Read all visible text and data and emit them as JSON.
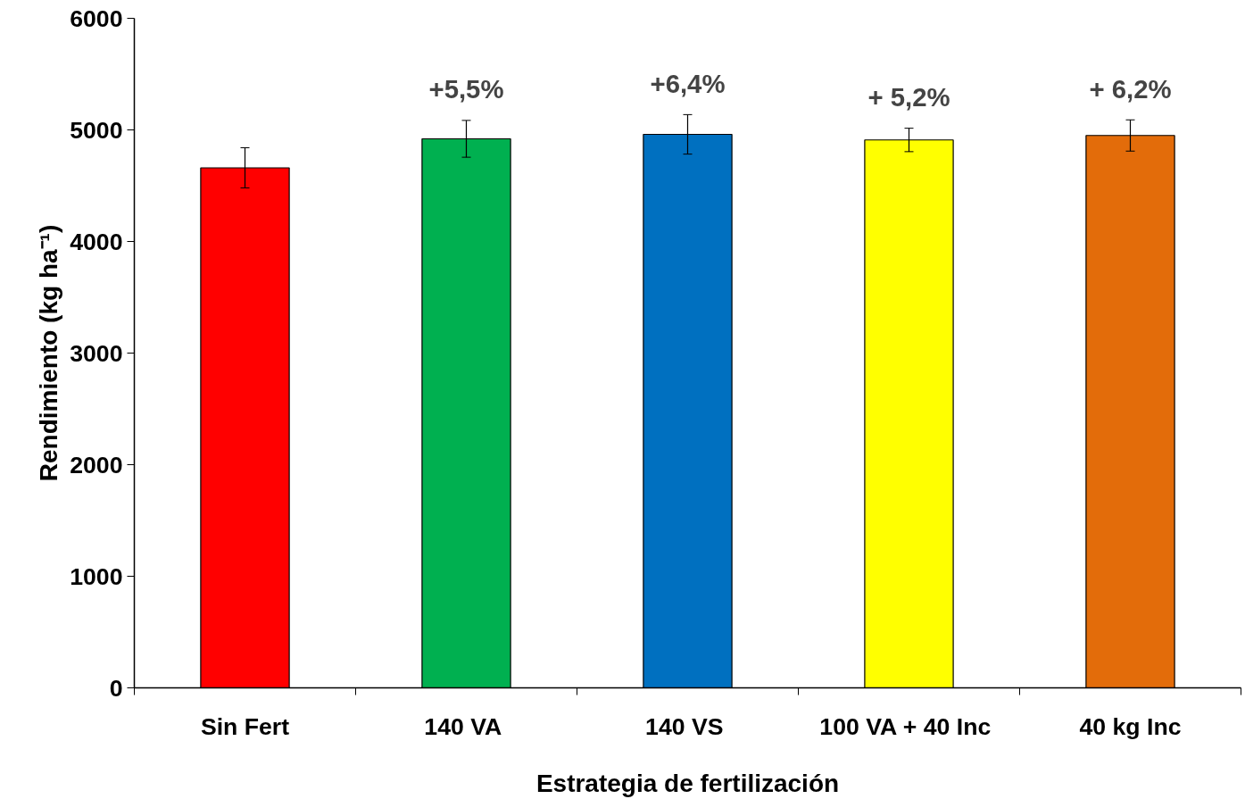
{
  "chart_data": {
    "type": "bar",
    "xlabel": "Estrategia de fertilización",
    "ylabel": "Rendimiento (kg ha⁻¹)",
    "categories": [
      "Sin Fert",
      "140  VA",
      "140  VS",
      "100 VA + 40  Inc",
      "40 kg Inc"
    ],
    "values": [
      4660,
      4920,
      4960,
      4910,
      4950
    ],
    "errors": [
      180,
      165,
      177,
      105,
      140
    ],
    "colors": [
      "#ff0000",
      "#00b050",
      "#0070c0",
      "#ffff00",
      "#e36c0a"
    ],
    "ylim": [
      0,
      6000
    ],
    "yticks": [
      0,
      1000,
      2000,
      3000,
      4000,
      5000,
      6000
    ],
    "grid": false,
    "annotations": [
      {
        "text": "+5,5%",
        "x": "140  VA",
        "y": 4920
      },
      {
        "text": "+6,4%",
        "x": "140  VS",
        "y": 4960
      },
      {
        "text": "+ 5,2%",
        "x": "100 VA + 40  Inc",
        "y": 4910
      },
      {
        "text": "+ 6,2%",
        "x": "40 kg Inc",
        "y": 4950
      }
    ]
  }
}
